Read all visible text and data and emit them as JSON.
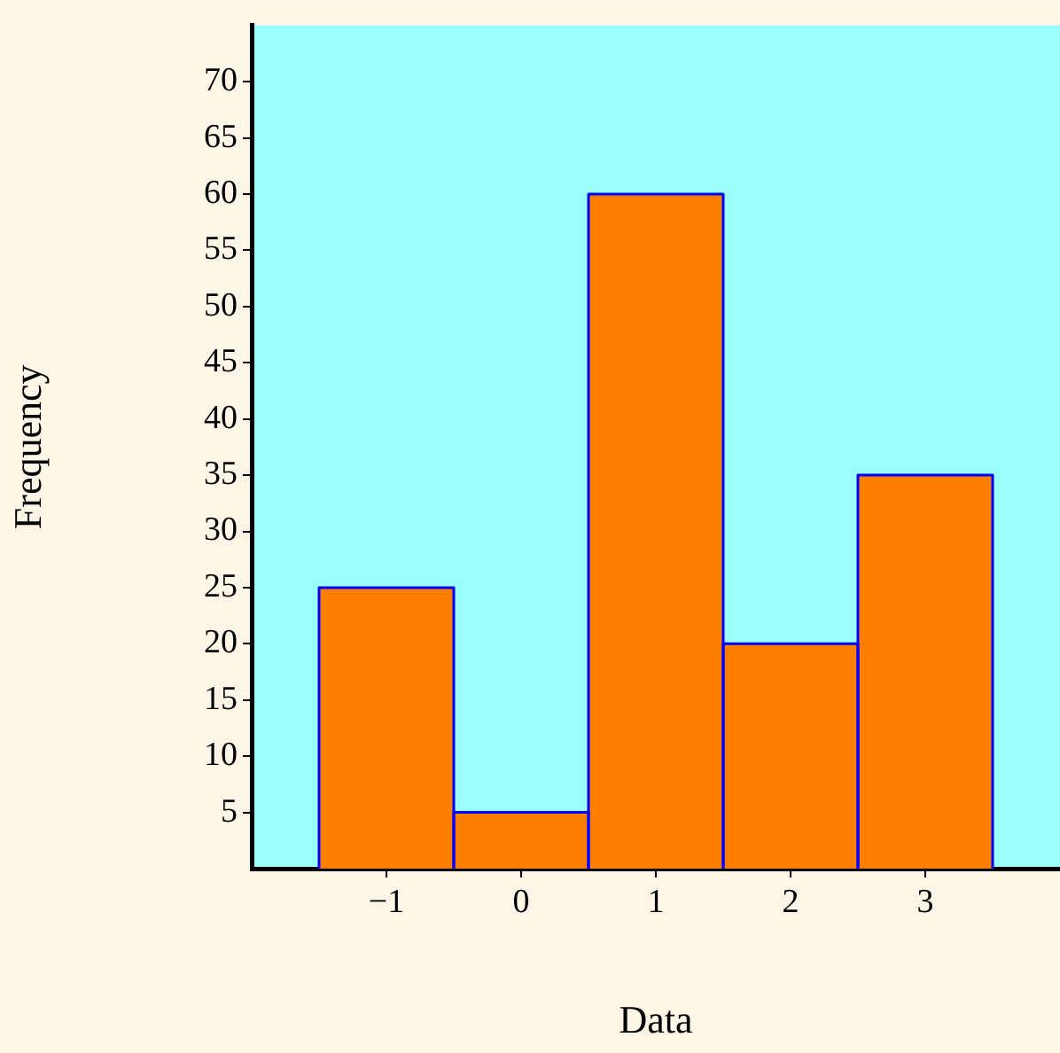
{
  "chart_data": {
    "type": "histogram",
    "xlabel": "Data",
    "ylabel": "Frequency",
    "bins": [
      -1.5,
      -0.5,
      0.5,
      1.5,
      2.5,
      3.5
    ],
    "values": [
      25,
      5,
      60,
      20,
      35
    ],
    "color": "#ff7f00",
    "xlim": [
      -2,
      4
    ],
    "xticks": [
      -1,
      0,
      1,
      2,
      3
    ],
    "ylim": [
      0,
      75
    ],
    "yticks": [
      5,
      10,
      15,
      20,
      25,
      30,
      35,
      40,
      45,
      50,
      55,
      60,
      65,
      70
    ],
    "grid": false,
    "legend": false
  }
}
